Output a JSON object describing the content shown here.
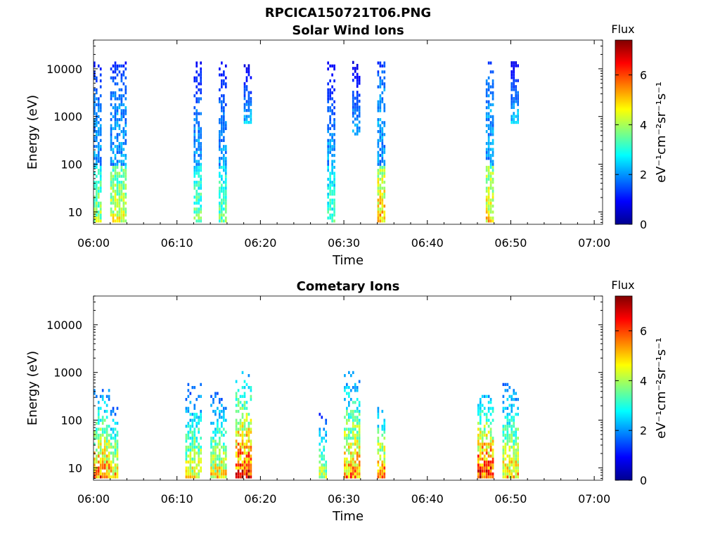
{
  "figure": {
    "title": "RPCICA150721T06.PNG"
  },
  "colorbar": {
    "title": "Flux",
    "label": "eV⁻¹cm⁻²sr⁻¹s⁻¹",
    "range": [
      0,
      7.4
    ],
    "ticks": [
      0,
      2,
      4,
      6
    ],
    "colormap": "jet"
  },
  "chart_data": [
    {
      "type": "heatmap",
      "title": "Solar Wind Ions",
      "xlabel": "Time",
      "ylabel": "Energy (eV)",
      "y_scale": "log",
      "xlim": [
        "06:00",
        "07:01"
      ],
      "ylim": [
        5.5,
        40000
      ],
      "x_ticks": [
        "06:00",
        "06:10",
        "06:20",
        "06:30",
        "06:40",
        "06:50",
        "07:00"
      ],
      "y_ticks": [
        10,
        100,
        1000,
        10000
      ],
      "y_tick_labels": [
        "10",
        "100",
        "1000",
        "10000"
      ],
      "bursts": [
        {
          "t_start": "06:00",
          "t_end": "06:01",
          "e_min": 6,
          "e_max": 15000,
          "peak_flux": 4.2
        },
        {
          "t_start": "06:02",
          "t_end": "06:04",
          "e_min": 6,
          "e_max": 15000,
          "peak_flux": 4.8
        },
        {
          "t_start": "06:12",
          "t_end": "06:13",
          "e_min": 6,
          "e_max": 15000,
          "peak_flux": 3.8
        },
        {
          "t_start": "06:15",
          "t_end": "06:16",
          "e_min": 6,
          "e_max": 15000,
          "peak_flux": 3.8
        },
        {
          "t_start": "06:18",
          "t_end": "06:19",
          "e_min": 700,
          "e_max": 12000,
          "peak_flux": 2.5
        },
        {
          "t_start": "06:28",
          "t_end": "06:29",
          "e_min": 6,
          "e_max": 15000,
          "peak_flux": 3.5
        },
        {
          "t_start": "06:31",
          "t_end": "06:32",
          "e_min": 400,
          "e_max": 15000,
          "peak_flux": 2.4
        },
        {
          "t_start": "06:34",
          "t_end": "06:35",
          "e_min": 6,
          "e_max": 15000,
          "peak_flux": 5.5
        },
        {
          "t_start": "06:47",
          "t_end": "06:48",
          "e_min": 6,
          "e_max": 15000,
          "peak_flux": 5.2
        },
        {
          "t_start": "06:50",
          "t_end": "06:51",
          "e_min": 700,
          "e_max": 17000,
          "peak_flux": 2.6
        }
      ]
    },
    {
      "type": "heatmap",
      "title": "Cometary Ions",
      "xlabel": "Time",
      "ylabel": "Energy (eV)",
      "y_scale": "log",
      "xlim": [
        "06:00",
        "07:01"
      ],
      "ylim": [
        5.5,
        40000
      ],
      "x_ticks": [
        "06:00",
        "06:10",
        "06:20",
        "06:30",
        "06:40",
        "06:50",
        "07:00"
      ],
      "y_ticks": [
        10,
        100,
        1000,
        10000
      ],
      "y_tick_labels": [
        "10",
        "100",
        "1000",
        "10000"
      ],
      "bursts": [
        {
          "t_start": "06:00",
          "t_end": "06:02",
          "e_min": 6,
          "e_max": 450,
          "peak_flux": 6.2
        },
        {
          "t_start": "06:02",
          "t_end": "06:03",
          "e_min": 6,
          "e_max": 200,
          "peak_flux": 5.5
        },
        {
          "t_start": "06:11",
          "t_end": "06:13",
          "e_min": 6,
          "e_max": 600,
          "peak_flux": 5.0
        },
        {
          "t_start": "06:14",
          "t_end": "06:16",
          "e_min": 6,
          "e_max": 400,
          "peak_flux": 5.2
        },
        {
          "t_start": "06:17",
          "t_end": "06:19",
          "e_min": 6,
          "e_max": 1100,
          "peak_flux": 7.0
        },
        {
          "t_start": "06:27",
          "t_end": "06:28",
          "e_min": 6,
          "e_max": 150,
          "peak_flux": 4.5
        },
        {
          "t_start": "06:30",
          "t_end": "06:32",
          "e_min": 6,
          "e_max": 1000,
          "peak_flux": 6.0
        },
        {
          "t_start": "06:34",
          "t_end": "06:35",
          "e_min": 6,
          "e_max": 200,
          "peak_flux": 6.2
        },
        {
          "t_start": "06:46",
          "t_end": "06:48",
          "e_min": 6,
          "e_max": 450,
          "peak_flux": 7.0
        },
        {
          "t_start": "06:49",
          "t_end": "06:51",
          "e_min": 6,
          "e_max": 600,
          "peak_flux": 5.5
        }
      ]
    }
  ]
}
